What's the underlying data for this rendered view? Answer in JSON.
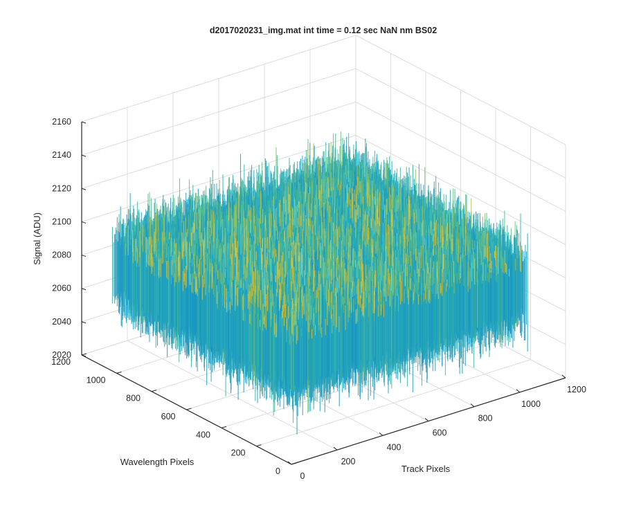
{
  "chart_data": {
    "type": "surface",
    "title": "d2017020231_img.mat int time = 0.12 sec  NaN nm BS02",
    "xlabel": "Track Pixels",
    "ylabel": "Wavelength Pixels",
    "zlabel": "Signal (ADU)",
    "xlim": [
      0,
      1200
    ],
    "ylim": [
      0,
      1200
    ],
    "zlim": [
      2020,
      2160
    ],
    "x_ticks": [
      "0",
      "200",
      "400",
      "600",
      "800",
      "1000",
      "1200"
    ],
    "y_ticks": [
      "0",
      "200",
      "400",
      "600",
      "800",
      "1000",
      "1200"
    ],
    "z_ticks": [
      "2020",
      "2040",
      "2060",
      "2080",
      "2100",
      "2120",
      "2140",
      "2160"
    ],
    "data_extent": {
      "x": [
        0,
        1024
      ],
      "y": [
        0,
        1024
      ]
    },
    "signal_mean": 2082,
    "signal_range": [
      2030,
      2150
    ],
    "colormap": "parula",
    "grid": true,
    "box": false
  },
  "colors": {
    "axis": "#262626",
    "grid": "#dcdcdc",
    "surface_low": "#0d72c8",
    "surface_mid": "#2cb3b0",
    "surface_high": "#f2c43a"
  }
}
